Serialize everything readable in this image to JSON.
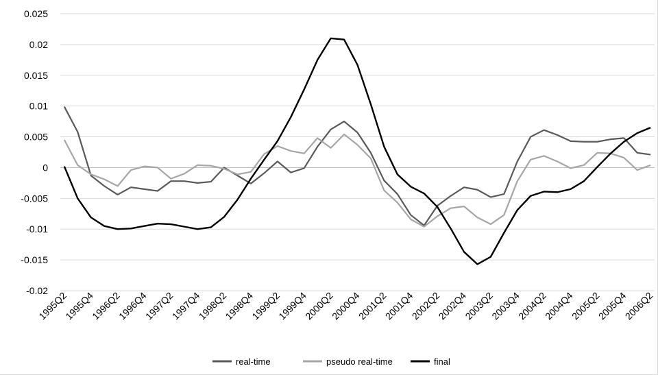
{
  "chart_data": {
    "type": "line",
    "title": "",
    "xlabel": "",
    "ylabel": "",
    "ylim": [
      -0.02,
      0.025
    ],
    "y_ticks": [
      "0.025",
      "0.02",
      "0.015",
      "0.01",
      "0.005",
      "0",
      "-0.005",
      "-0.01",
      "-0.015",
      "-0.02"
    ],
    "y_tick_values": [
      0.025,
      0.02,
      0.015,
      0.01,
      0.005,
      0,
      -0.005,
      -0.01,
      -0.015,
      -0.02
    ],
    "x": [
      "1995Q2",
      "1995Q3",
      "1995Q4",
      "1996Q1",
      "1996Q2",
      "1996Q3",
      "1996Q4",
      "1997Q1",
      "1997Q2",
      "1997Q3",
      "1997Q4",
      "1998Q1",
      "1998Q2",
      "1998Q3",
      "1998Q4",
      "1999Q1",
      "1999Q2",
      "1999Q3",
      "1999Q4",
      "2000Q1",
      "2000Q2",
      "2000Q3",
      "2000Q4",
      "2001Q1",
      "2001Q2",
      "2001Q3",
      "2001Q4",
      "2002Q1",
      "2002Q2",
      "2002Q3",
      "2002Q4",
      "2003Q1",
      "2003Q2",
      "2003Q3",
      "2003Q4",
      "2004Q1",
      "2004Q2",
      "2004Q3",
      "2004Q4",
      "2005Q1",
      "2005Q2",
      "2005Q3",
      "2005Q4",
      "2006Q1",
      "2006Q2"
    ],
    "x_tick_labels": [
      "1995Q2",
      "1995Q4",
      "1996Q2",
      "1996Q4",
      "1997Q2",
      "1997Q4",
      "1998Q2",
      "1998Q4",
      "1999Q2",
      "1999Q4",
      "2000Q2",
      "2000Q4",
      "2001Q2",
      "2001Q4",
      "2002Q2",
      "2002Q4",
      "2003Q2",
      "2003Q4",
      "2004Q2",
      "2004Q4",
      "2005Q2",
      "2005Q4",
      "2006Q2"
    ],
    "grid": "horizontal",
    "legend_position": "bottom",
    "series": [
      {
        "name": "real-time",
        "color": "#595959",
        "values": [
          0.0099,
          0.0058,
          -0.0013,
          -0.003,
          -0.0044,
          -0.0032,
          -0.0035,
          -0.0038,
          -0.0022,
          -0.0022,
          -0.0025,
          -0.0023,
          0.0,
          -0.0013,
          -0.0026,
          -0.0009,
          0.001,
          -0.0008,
          -0.0001,
          0.0034,
          0.0062,
          0.0075,
          0.0057,
          0.0024,
          -0.0021,
          -0.0043,
          -0.0077,
          -0.0094,
          -0.0062,
          -0.0046,
          -0.0032,
          -0.0036,
          -0.0048,
          -0.0043,
          0.001,
          0.005,
          0.0061,
          0.0053,
          0.0043,
          0.0042,
          0.0042,
          0.0046,
          0.0048,
          0.0024,
          0.0021
        ]
      },
      {
        "name": "pseudo real-time",
        "color": "#a6a6a6",
        "values": [
          0.0045,
          0.0004,
          -0.0011,
          -0.0019,
          -0.003,
          -0.0004,
          0.0002,
          0.0,
          -0.0018,
          -0.001,
          0.0004,
          0.0003,
          -0.0002,
          -0.0011,
          -0.0007,
          0.0022,
          0.0035,
          0.0027,
          0.0023,
          0.0048,
          0.0032,
          0.0054,
          0.0037,
          0.0015,
          -0.0037,
          -0.0057,
          -0.0084,
          -0.0096,
          -0.0079,
          -0.0066,
          -0.0063,
          -0.0081,
          -0.0092,
          -0.0077,
          -0.0022,
          0.0013,
          0.0019,
          0.001,
          -0.0001,
          0.0004,
          0.0024,
          0.0023,
          0.0016,
          -0.0004,
          0.0004
        ]
      },
      {
        "name": "final",
        "color": "#000000",
        "values": [
          0.0002,
          -0.005,
          -0.0081,
          -0.0095,
          -0.01,
          -0.0099,
          -0.0095,
          -0.0091,
          -0.0092,
          -0.0096,
          -0.01,
          -0.0097,
          -0.008,
          -0.0052,
          -0.0018,
          0.0013,
          0.0043,
          0.0082,
          0.0127,
          0.0175,
          0.021,
          0.0208,
          0.0167,
          0.0103,
          0.0034,
          -0.0011,
          -0.0031,
          -0.0042,
          -0.0064,
          -0.0099,
          -0.0137,
          -0.0157,
          -0.0145,
          -0.0106,
          -0.0069,
          -0.0046,
          -0.0039,
          -0.004,
          -0.0035,
          -0.0022,
          0.0001,
          0.0023,
          0.0042,
          0.0056,
          0.0065
        ]
      }
    ]
  }
}
